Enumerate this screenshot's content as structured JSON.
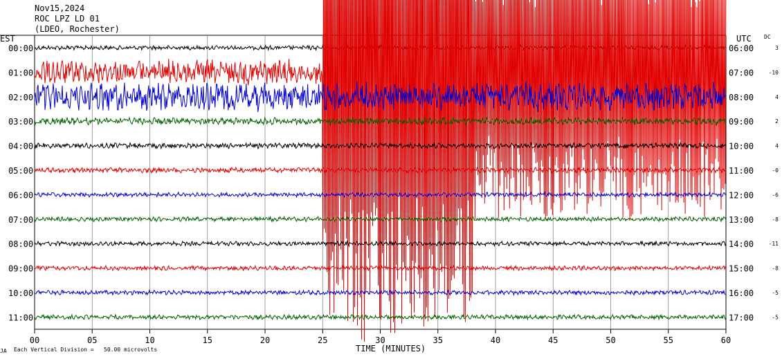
{
  "header": {
    "date": "Nov15,2024",
    "station": "ROC LPZ LD 01",
    "network": "(LDEO, Rochester)"
  },
  "left_zone": "EST",
  "right_zone": "UTC",
  "dc_header": "DC",
  "footer": {
    "mark": "JA",
    "scale_note": "Each Vertical Division =   50.00 microvolts"
  },
  "colors": {
    "trace_cycle": [
      "#000000",
      "#e00000",
      "#0000d0",
      "#006000"
    ],
    "grid": "#000000"
  },
  "chart_data": {
    "type": "line",
    "subtype": "helicorder",
    "xlabel": "TIME (MINUTES)",
    "x_ticks": [
      "00",
      "05",
      "10",
      "15",
      "20",
      "25",
      "30",
      "35",
      "40",
      "45",
      "50",
      "55",
      "60"
    ],
    "xlim": [
      0,
      60
    ],
    "vertical_grid": true,
    "rows": [
      {
        "est": "00:00",
        "utc": "06:00",
        "dc": "3",
        "color": "#000000",
        "amp": 2.5
      },
      {
        "est": "01:00",
        "utc": "07:00",
        "dc": "-10",
        "color": "#e00000",
        "amp": 14
      },
      {
        "est": "02:00",
        "utc": "08:00",
        "dc": "4",
        "color": "#0000d0",
        "amp": 16
      },
      {
        "est": "03:00",
        "utc": "09:00",
        "dc": "2",
        "color": "#006000",
        "amp": 4
      },
      {
        "est": "04:00",
        "utc": "10:00",
        "dc": "4",
        "color": "#000000",
        "amp": 3
      },
      {
        "est": "05:00",
        "utc": "11:00",
        "dc": "-0",
        "color": "#e00000",
        "amp": 3
      },
      {
        "est": "06:00",
        "utc": "12:00",
        "dc": "-6",
        "color": "#0000d0",
        "amp": 2.5
      },
      {
        "est": "07:00",
        "utc": "13:00",
        "dc": "-8",
        "color": "#006000",
        "amp": 2.5
      },
      {
        "est": "08:00",
        "utc": "14:00",
        "dc": "-11",
        "color": "#000000",
        "amp": 2.5
      },
      {
        "est": "09:00",
        "utc": "15:00",
        "dc": "-8",
        "color": "#e00000",
        "amp": 2.5
      },
      {
        "est": "10:00",
        "utc": "16:00",
        "dc": "-5",
        "color": "#0000d0",
        "amp": 2.5
      },
      {
        "est": "11:00",
        "utc": "17:00",
        "dc": "-5",
        "color": "#006000",
        "amp": 2.5
      }
    ],
    "events": [
      {
        "row": 1,
        "start_min": 25,
        "end_min": 38,
        "amplitude_rows": 11
      },
      {
        "row": 1,
        "start_min": 38,
        "end_min": 60,
        "amplitude_rows": 6
      }
    ]
  }
}
